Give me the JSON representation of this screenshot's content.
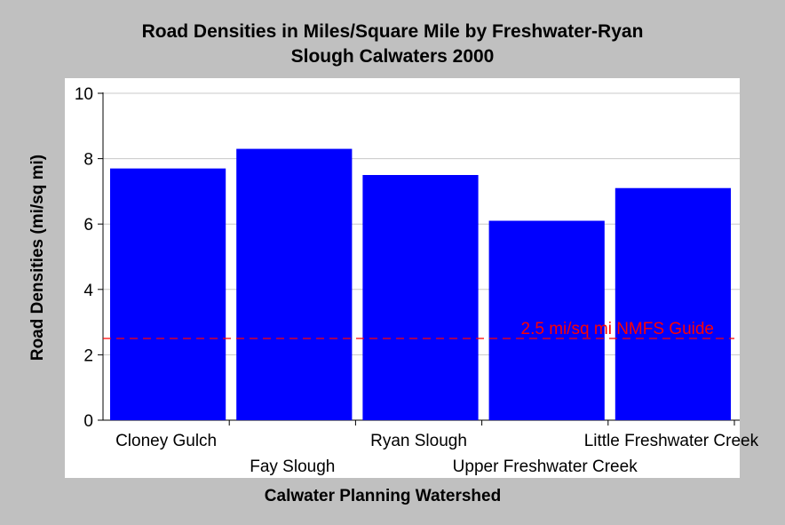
{
  "chart_data": {
    "type": "bar",
    "title_line1": "Road Densities in Miles/Square Mile by Freshwater-Ryan",
    "title_line2": "Slough Calwaters 2000",
    "xlabel": "Calwater Planning Watershed",
    "ylabel": "Road Densities (mi/sq mi)",
    "categories": [
      "Cloney Gulch",
      "Fay Slough",
      "Ryan Slough",
      "Upper Freshwater Creek",
      "Little Freshwater Creek"
    ],
    "values": [
      7.7,
      8.3,
      7.5,
      6.1,
      7.1
    ],
    "ylim": [
      0,
      10
    ],
    "yticks": [
      "0",
      "2",
      "4",
      "6",
      "8",
      "10"
    ],
    "grid": true,
    "bar_color": "#0000ff",
    "reference_line": {
      "value": 2.5,
      "label": "2.5 mi/sq mi NMFS Guide",
      "color": "#ff0000",
      "style": "dashed"
    }
  }
}
